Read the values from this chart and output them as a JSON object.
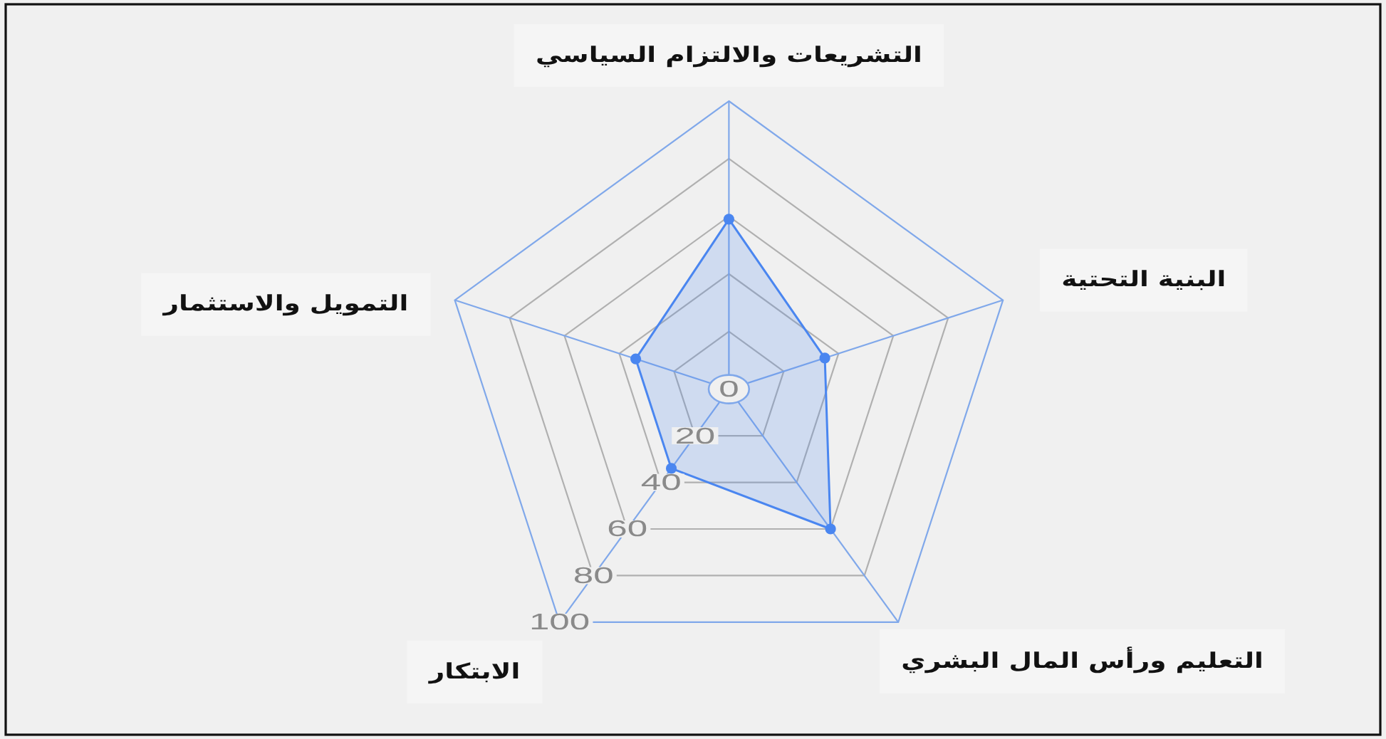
{
  "chart_data": {
    "type": "radar",
    "categories": [
      "التشريعات والالتزام السياسي",
      "البنية التحتية",
      "التعليم ورأس المال البشري",
      "الابتكار",
      "التمويل والاستثمار"
    ],
    "series": [
      {
        "color": "#4a86f0",
        "values": [
          59,
          35,
          60,
          34,
          34
        ]
      }
    ],
    "ylim": [
      0,
      100
    ],
    "yticks": [
      0,
      20,
      40,
      60,
      80,
      100
    ],
    "grid": true,
    "marker": "circle"
  }
}
